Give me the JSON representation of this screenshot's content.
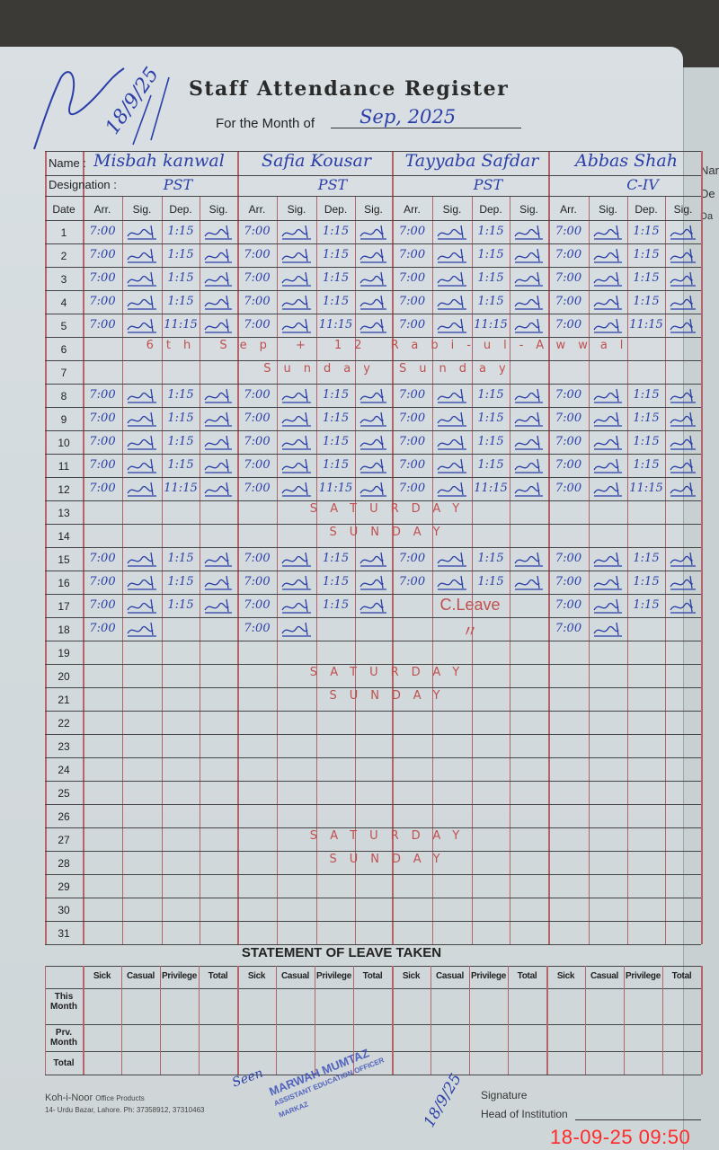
{
  "header": {
    "title": "Staff Attendance Register",
    "month_label": "For the Month of",
    "month_value": "Sep, 2025",
    "corner_note": "18/9/25"
  },
  "labels": {
    "name": "Name :",
    "designation": "Designation :"
  },
  "columns": [
    "Date",
    "Arr.",
    "Sig.",
    "Dep.",
    "Sig."
  ],
  "staff": [
    {
      "name": "Misbah kanwal",
      "designation": "PST"
    },
    {
      "name": "Safia Kousar",
      "designation": "PST"
    },
    {
      "name": "Tayyaba Safdar",
      "designation": "PST"
    },
    {
      "name": "Abbas Shah",
      "designation": "C-IV"
    }
  ],
  "rows": [
    {
      "date": "1",
      "cells": [
        [
          "7:00",
          true,
          "1:15",
          true
        ],
        [
          "7:00",
          true,
          "1:15",
          true
        ],
        [
          "7:00",
          true,
          "1:15",
          true
        ],
        [
          "7:00",
          true,
          "1:15",
          true
        ]
      ]
    },
    {
      "date": "2",
      "cells": [
        [
          "7:00",
          true,
          "1:15",
          true
        ],
        [
          "7:00",
          true,
          "1:15",
          true
        ],
        [
          "7:00",
          true,
          "1:15",
          true
        ],
        [
          "7:00",
          true,
          "1:15",
          true
        ]
      ]
    },
    {
      "date": "3",
      "cells": [
        [
          "7:00",
          true,
          "1:15",
          true
        ],
        [
          "7:00",
          true,
          "1:15",
          true
        ],
        [
          "7:00",
          true,
          "1:15",
          true
        ],
        [
          "7:00",
          true,
          "1:15",
          true
        ]
      ]
    },
    {
      "date": "4",
      "cells": [
        [
          "7:00",
          true,
          "1:15",
          true
        ],
        [
          "7:00",
          true,
          "1:15",
          true
        ],
        [
          "7:00",
          true,
          "1:15",
          true
        ],
        [
          "7:00",
          true,
          "1:15",
          true
        ]
      ]
    },
    {
      "date": "5",
      "cells": [
        [
          "7:00",
          true,
          "11:15",
          true
        ],
        [
          "7:00",
          true,
          "11:15",
          true
        ],
        [
          "7:00",
          true,
          "11:15",
          true
        ],
        [
          "7:00",
          true,
          "11:15",
          true
        ]
      ]
    },
    {
      "date": "6",
      "note": "6th Sep + 12 Rabi-ul-Awwal"
    },
    {
      "date": "7",
      "note": "Sunday Sunday"
    },
    {
      "date": "8",
      "cells": [
        [
          "7:00",
          true,
          "1:15",
          true
        ],
        [
          "7:00",
          true,
          "1:15",
          true
        ],
        [
          "7:00",
          true,
          "1:15",
          true
        ],
        [
          "7:00",
          true,
          "1:15",
          true
        ]
      ]
    },
    {
      "date": "9",
      "cells": [
        [
          "7:00",
          true,
          "1:15",
          true
        ],
        [
          "7:00",
          true,
          "1:15",
          true
        ],
        [
          "7:00",
          true,
          "1:15",
          true
        ],
        [
          "7:00",
          true,
          "1:15",
          true
        ]
      ]
    },
    {
      "date": "10",
      "cells": [
        [
          "7:00",
          true,
          "1:15",
          true
        ],
        [
          "7:00",
          true,
          "1:15",
          true
        ],
        [
          "7:00",
          true,
          "1:15",
          true
        ],
        [
          "7:00",
          true,
          "1:15",
          true
        ]
      ]
    },
    {
      "date": "11",
      "cells": [
        [
          "7:00",
          true,
          "1:15",
          true
        ],
        [
          "7:00",
          true,
          "1:15",
          true
        ],
        [
          "7:00",
          true,
          "1:15",
          true
        ],
        [
          "7:00",
          true,
          "1:15",
          true
        ]
      ]
    },
    {
      "date": "12",
      "cells": [
        [
          "7:00",
          true,
          "11:15",
          true
        ],
        [
          "7:00",
          true,
          "11:15",
          true
        ],
        [
          "7:00",
          true,
          "11:15",
          true
        ],
        [
          "7:00",
          true,
          "11:15",
          true
        ]
      ]
    },
    {
      "date": "13",
      "note": "SATURDAY"
    },
    {
      "date": "14",
      "note": "SUNDAY"
    },
    {
      "date": "15",
      "cells": [
        [
          "7:00",
          true,
          "1:15",
          true
        ],
        [
          "7:00",
          true,
          "1:15",
          true
        ],
        [
          "7:00",
          true,
          "1:15",
          true
        ],
        [
          "7:00",
          true,
          "1:15",
          true
        ]
      ]
    },
    {
      "date": "16",
      "cells": [
        [
          "7:00",
          true,
          "1:15",
          true
        ],
        [
          "7:00",
          true,
          "1:15",
          true
        ],
        [
          "7:00",
          true,
          "1:15",
          true
        ],
        [
          "7:00",
          true,
          "1:15",
          true
        ]
      ]
    },
    {
      "date": "17",
      "cells": [
        [
          "7:00",
          true,
          "1:15",
          true
        ],
        [
          "7:00",
          true,
          "1:15",
          true
        ],
        [
          "C.Leave",
          false,
          "",
          false
        ],
        [
          "7:00",
          true,
          "1:15",
          true
        ]
      ]
    },
    {
      "date": "18",
      "cells": [
        [
          "7:00",
          true,
          "",
          false
        ],
        [
          "7:00",
          true,
          "",
          false
        ],
        [
          "〃",
          false,
          "",
          false
        ],
        [
          "7:00",
          true,
          "",
          false
        ]
      ]
    },
    {
      "date": "19"
    },
    {
      "date": "20",
      "note": "SATURDAY"
    },
    {
      "date": "21",
      "note": "SUNDAY"
    },
    {
      "date": "22"
    },
    {
      "date": "23"
    },
    {
      "date": "24"
    },
    {
      "date": "25"
    },
    {
      "date": "26"
    },
    {
      "date": "27",
      "note": "SATURDAY"
    },
    {
      "date": "28",
      "note": "SUNDAY"
    },
    {
      "date": "29"
    },
    {
      "date": "30"
    },
    {
      "date": "31"
    }
  ],
  "leave": {
    "title": "STATEMENT OF LEAVE TAKEN",
    "columns": [
      "Sick",
      "Casual",
      "Privilege",
      "Total"
    ],
    "rows": [
      "This Month",
      "Prv. Month",
      "Total"
    ]
  },
  "footer": {
    "brand": "Koh-i-Noor",
    "brand_sub": "Office Products",
    "address": "14- Urdu Bazar, Lahore. Ph: 37358912, 37310463",
    "seen": "Seen",
    "stamp_line1": "MARWAH MUMTAZ",
    "stamp_line2": "ASSISTANT EDUCATION OFFICER",
    "stamp_line3": "MARKAZ",
    "seen_date": "18/9/25",
    "signature_label": "Signature",
    "head_label": "Head of Institution"
  },
  "next_page": [
    "Nar",
    "De",
    "Da"
  ],
  "timestamp": "18-09-25  09:50",
  "colors": {
    "ink_blue": "#2b3fa8",
    "ink_red": "#c0504f",
    "rule_red": "#b5656a",
    "timestamp": "#ff2a2a"
  }
}
